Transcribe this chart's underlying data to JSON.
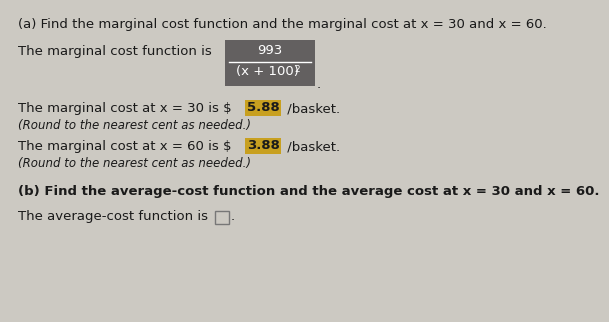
{
  "title_a": "(a) Find the marginal cost function and the marginal cost at x = 30 and x = 60.",
  "line1_prefix": "The marginal cost function is",
  "fraction_numerator": "993",
  "fraction_denominator": "(x + 100)",
  "fraction_exp": "2",
  "line3a_pre": "The marginal cost at x = 30 is $",
  "line3a_val": "5.88",
  "line3a_post": "/basket.",
  "line3b": "(Round to the nearest cent as needed.)",
  "line4a_pre": "The marginal cost at x = 60 is $",
  "line4a_val": "3.88",
  "line4a_post": "/basket.",
  "line4b": "(Round to the nearest cent as needed.)",
  "title_b": "(b) Find the average-cost function and the average cost at x = 30 and x = 60.",
  "line5": "The average-cost function is",
  "bg_color": "#ccc9c2",
  "text_color": "#1a1a1a",
  "highlight_color": "#c8a020",
  "fraction_bg": "#636060",
  "font_size": 9.5,
  "font_size_small": 8.5
}
